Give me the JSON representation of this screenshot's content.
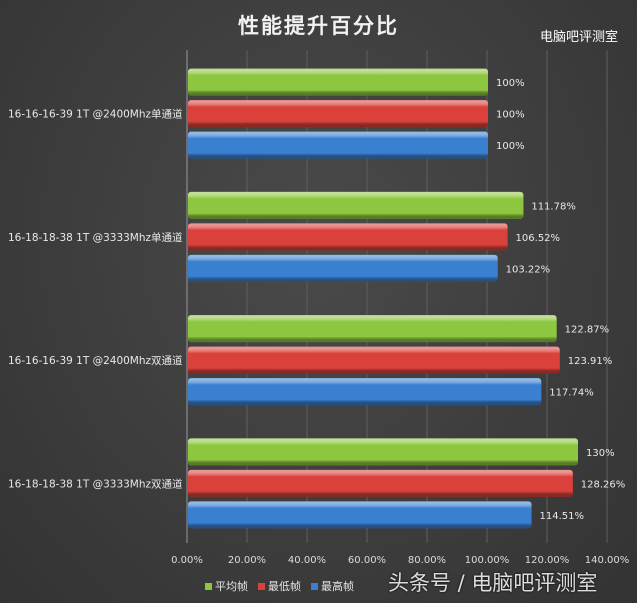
{
  "chart_data": {
    "type": "bar",
    "orientation": "horizontal",
    "title": "性能提升百分比",
    "categories": [
      "16-16-16-39 1T @2400Mhz单通道",
      "16-18-18-38 1T @3333Mhz单通道",
      "16-16-16-39 1T @2400Mhz双通道",
      "16-18-18-38 1T @3333Mhz双通道"
    ],
    "series": [
      {
        "name": "平均帧",
        "color": "#8dc63f",
        "values": [
          100,
          111.78,
          122.87,
          130
        ],
        "labels": [
          "100%",
          "111.78%",
          "122.87%",
          "130%"
        ]
      },
      {
        "name": "最低帧",
        "color": "#d9413a",
        "values": [
          100,
          106.52,
          123.91,
          128.26
        ],
        "labels": [
          "100%",
          "106.52%",
          "123.91%",
          "128.26%"
        ]
      },
      {
        "name": "最高帧",
        "color": "#3a80d0",
        "values": [
          100,
          103.22,
          117.74,
          114.51
        ],
        "labels": [
          "100%",
          "103.22%",
          "117.74%",
          "114.51%"
        ]
      }
    ],
    "xlim": [
      0,
      140
    ],
    "xticks": [
      "0.00%",
      "20.00%",
      "40.00%",
      "60.00%",
      "80.00%",
      "100.00%",
      "120.00%",
      "140.00%"
    ],
    "grid": true,
    "legend": "bottom"
  },
  "watermark": {
    "main": "头条号 / 电脑吧评测室",
    "small": "电脑吧评测室"
  }
}
